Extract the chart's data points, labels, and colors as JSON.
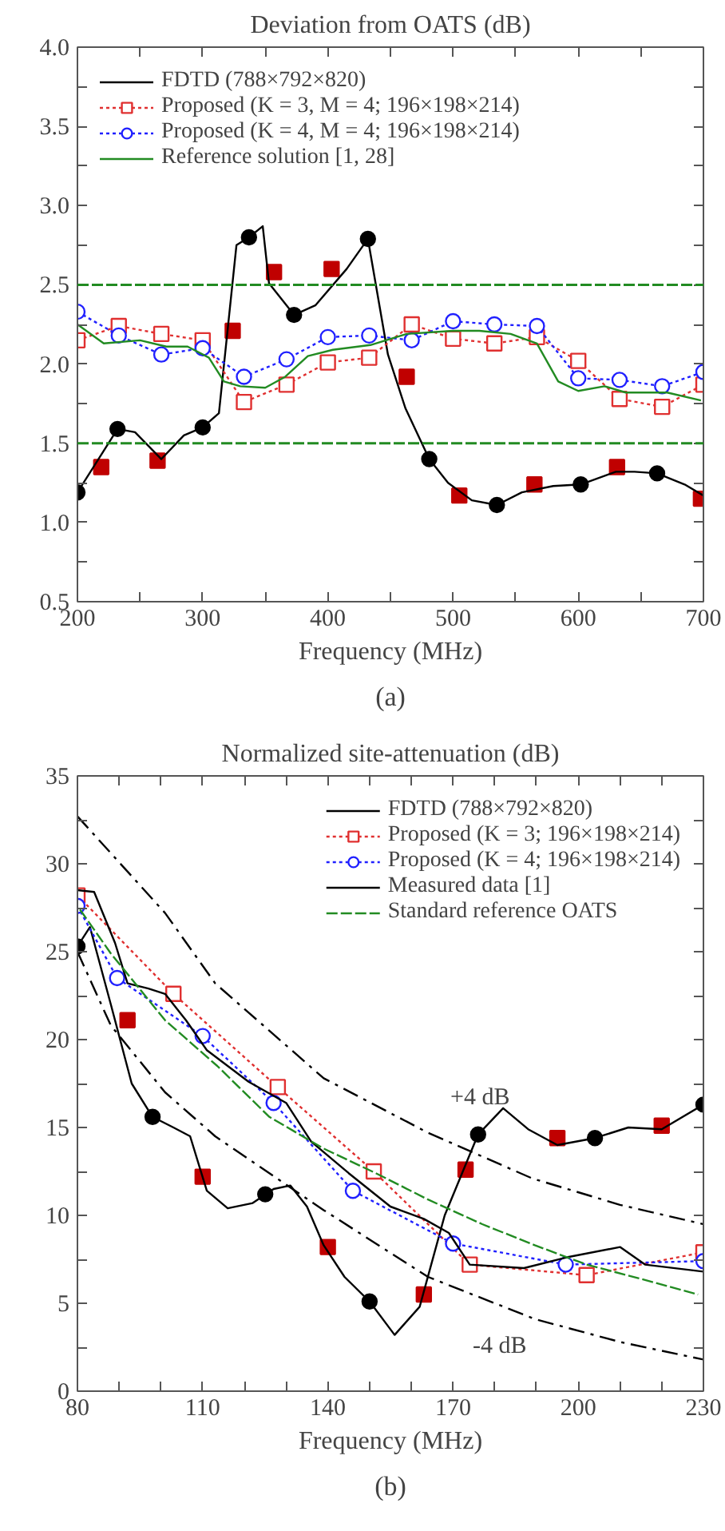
{
  "chart_data": [
    {
      "type": "line",
      "title": "Deviation from OATS (dB)",
      "xlabel": "Frequency (MHz)",
      "annotations": [
        "(a)"
      ],
      "xlim": [
        200,
        700
      ],
      "ylim": [
        0.5,
        4.0
      ],
      "xticks": [
        200,
        {
          "value": 250,
          "label": null
        },
        300,
        {
          "value": 350,
          "label": null
        },
        400,
        {
          "value": 450,
          "label": null
        },
        500,
        {
          "value": 550,
          "label": null
        },
        600,
        {
          "value": 650,
          "label": null
        },
        700
      ],
      "yticks": [
        0.5,
        {
          "value": 0.75,
          "label": null
        },
        {
          "value": 1,
          "label": "1.0"
        },
        {
          "value": 1.25,
          "label": null
        },
        1.5,
        {
          "value": 1.75,
          "label": null
        },
        {
          "value": 2,
          "label": "2.0"
        },
        {
          "value": 2.25,
          "label": null
        },
        2.5,
        {
          "value": 2.75,
          "label": null
        },
        {
          "value": 3,
          "label": "3.0"
        },
        {
          "value": 3.25,
          "label": null
        },
        3.5,
        {
          "value": 3.75,
          "label": null
        },
        {
          "value": 4,
          "label": "4.0"
        }
      ],
      "legend": "top left",
      "grid": false,
      "ref_lines": [
        {
          "axis": "y",
          "value": 2.5,
          "color": "#228b22",
          "line_style": "dashed"
        },
        {
          "axis": "y",
          "value": 1.5,
          "color": "#228b22",
          "line_style": "dashed"
        }
      ],
      "series": [
        {
          "type": "scatter",
          "color": "#c00000",
          "marker": "square",
          "x": [
            219,
            264,
            324,
            357,
            403,
            463,
            505,
            565,
            631,
            698
          ],
          "values": [
            1.35,
            1.39,
            2.21,
            2.58,
            2.6,
            1.92,
            1.17,
            1.24,
            1.35,
            1.15
          ]
        },
        {
          "name": "FDTD (788×792×820)",
          "color": "#000000",
          "marker": "none",
          "line_style": "solid",
          "x": [
            200,
            232,
            246,
            267,
            285,
            300,
            313,
            327,
            337,
            348,
            353,
            373,
            390,
            415,
            432,
            448,
            462,
            481,
            496,
            515,
            535,
            555,
            580,
            602,
            630,
            645,
            663,
            685,
            700
          ],
          "values": [
            1.19,
            1.59,
            1.57,
            1.4,
            1.55,
            1.6,
            1.69,
            2.75,
            2.8,
            2.87,
            2.51,
            2.31,
            2.37,
            2.6,
            2.79,
            2.06,
            1.72,
            1.4,
            1.25,
            1.14,
            1.11,
            1.19,
            1.23,
            1.24,
            1.32,
            1.32,
            1.31,
            1.24,
            1.17
          ]
        },
        {
          "type": "scatter",
          "color": "#000000",
          "marker": "circle",
          "x": [
            200,
            232,
            300,
            337,
            373,
            432,
            481,
            535,
            602,
            663
          ],
          "values": [
            1.19,
            1.59,
            1.6,
            2.8,
            2.31,
            2.79,
            1.4,
            1.11,
            1.24,
            1.31
          ]
        },
        {
          "name": "Proposed (K = 3, M = 4; 196×198×214)",
          "color": "#e03030",
          "marker": "square",
          "line_style": "dotted",
          "x": [
            200,
            233,
            267,
            300,
            333,
            367,
            400,
            433,
            467,
            500,
            533,
            567,
            600,
            633,
            667,
            700
          ],
          "values": [
            2.15,
            2.24,
            2.19,
            2.15,
            1.76,
            1.87,
            2.01,
            2.04,
            2.25,
            2.16,
            2.13,
            2.17,
            2.02,
            1.78,
            1.73,
            1.87
          ]
        },
        {
          "name": "Proposed (K = 4, M = 4; 196×198×214)",
          "color": "#2020ff",
          "marker": "circle",
          "line_style": "dotted",
          "x": [
            200,
            233,
            267,
            300,
            333,
            367,
            400,
            433,
            467,
            500,
            533,
            567,
            600,
            633,
            667,
            700
          ],
          "values": [
            2.33,
            2.18,
            2.06,
            2.1,
            1.92,
            2.03,
            2.17,
            2.18,
            2.15,
            2.27,
            2.25,
            2.24,
            1.91,
            1.9,
            1.86,
            1.95
          ]
        },
        {
          "name": "Reference solution [1, 28]",
          "color": "#228b22",
          "marker": "none",
          "line_style": "solid",
          "x": [
            200,
            221,
            250,
            271,
            288,
            305,
            317,
            330,
            350,
            366,
            384,
            404,
            434,
            463,
            500,
            521,
            546,
            567,
            584,
            600,
            621,
            638,
            671,
            698
          ],
          "values": [
            2.25,
            2.13,
            2.15,
            2.11,
            2.11,
            2.04,
            1.89,
            1.86,
            1.85,
            1.92,
            2.05,
            2.09,
            2.12,
            2.19,
            2.21,
            2.21,
            2.19,
            2.13,
            1.89,
            1.83,
            1.86,
            1.82,
            1.82,
            1.77
          ]
        }
      ]
    },
    {
      "type": "line",
      "title": "Normalized site-attenuation (dB)",
      "xlabel": "Frequency (MHz)",
      "annotations": [
        {
          "text": "+4 dB",
          "x": 164,
          "y": 14.7
        },
        {
          "text": "-4 dB",
          "x": 193,
          "y": 3.8
        },
        "(b)"
      ],
      "xlim": [
        80,
        230
      ],
      "ylim": [
        0,
        35
      ],
      "xticks": [
        80,
        {
          "value": 90,
          "label": null
        },
        {
          "value": 100,
          "label": null
        },
        110,
        {
          "value": 120,
          "label": null
        },
        {
          "value": 130,
          "label": null
        },
        140,
        {
          "value": 150,
          "label": null
        },
        {
          "value": 160,
          "label": null
        },
        170,
        {
          "value": 180,
          "label": null
        },
        {
          "value": 190,
          "label": null
        },
        200,
        {
          "value": 210,
          "label": null
        },
        {
          "value": 220,
          "label": null
        },
        230
      ],
      "yticks": [
        0,
        {
          "value": 2.5,
          "label": null
        },
        5,
        {
          "value": 7.5,
          "label": null
        },
        10,
        {
          "value": 12.5,
          "label": null
        },
        15,
        {
          "value": 17.5,
          "label": null
        },
        20,
        {
          "value": 22.5,
          "label": null
        },
        25,
        {
          "value": 27.5,
          "label": null
        },
        30,
        {
          "value": 32.5,
          "label": null
        },
        35
      ],
      "legend": "top right",
      "grid": false,
      "series": [
        {
          "type": "scatter",
          "color": "#c00000",
          "marker": "square",
          "x": [
            92,
            110,
            140,
            163,
            173,
            195,
            220
          ],
          "values": [
            21.1,
            12.2,
            8.2,
            5.5,
            12.6,
            14.4,
            15.1
          ]
        },
        {
          "name": "FDTD (788×792×820)",
          "color": "#000000",
          "marker": "none",
          "line_style": "solid",
          "x": [
            80,
            83,
            88,
            93,
            98,
            103,
            107,
            111,
            116,
            122,
            127,
            131,
            135,
            139,
            144,
            150,
            156,
            162,
            168,
            176,
            182,
            188,
            195,
            204,
            212,
            220,
            230
          ],
          "values": [
            25.3,
            26.4,
            22,
            17.5,
            15.6,
            15,
            14.5,
            11.4,
            10.4,
            10.7,
            11.5,
            11.7,
            10.5,
            8.3,
            6.5,
            5.1,
            3.2,
            4.8,
            10,
            14.6,
            16.1,
            14.9,
            14,
            14.4,
            15,
            14.9,
            16.3
          ]
        },
        {
          "type": "scatter",
          "color": "#000000",
          "marker": "circle",
          "x": [
            80,
            98,
            125,
            150,
            176,
            204,
            230
          ],
          "values": [
            25.3,
            15.6,
            11.2,
            5.1,
            14.6,
            14.4,
            16.3
          ]
        },
        {
          "name": "Proposed (K = 3; 196×198×214)",
          "color": "#e03030",
          "marker": "square",
          "line_style": "dotted",
          "x": [
            80,
            103,
            128,
            151,
            174,
            202,
            230
          ],
          "values": [
            28.2,
            22.6,
            17.3,
            12.5,
            7.2,
            6.6,
            7.9
          ]
        },
        {
          "name": "Proposed (K = 4; 196×198×214)",
          "color": "#2020ff",
          "marker": "circle",
          "line_style": "dotted",
          "x": [
            80,
            89.5,
            110,
            127,
            146,
            170,
            197,
            230
          ],
          "values": [
            27.6,
            23.5,
            20.2,
            16.4,
            11.4,
            8.4,
            7.2,
            7.4
          ]
        },
        {
          "name": "Measured data [1]",
          "color": "#000000",
          "marker": "none",
          "line_style": "solid",
          "x": [
            80,
            84,
            89,
            92,
            97,
            101,
            106,
            111,
            121,
            130,
            136,
            145,
            155,
            163,
            169,
            174,
            187,
            197,
            210,
            216,
            230
          ],
          "values": [
            28.5,
            28.4,
            25.5,
            23.2,
            22.9,
            22.6,
            21.1,
            19.4,
            17.6,
            16.4,
            14.2,
            12.4,
            10.5,
            9.8,
            9,
            7.2,
            7,
            7.6,
            8.2,
            7.2,
            6.8
          ]
        },
        {
          "name": "Standard reference OATS",
          "color": "#228b22",
          "marker": "none",
          "line_style": "dashed",
          "x": [
            80.6,
            88,
            101,
            113.5,
            126,
            139,
            151.5,
            164,
            177,
            189.6,
            202,
            214.8,
            228.7
          ],
          "values": [
            27.4,
            24.9,
            21.1,
            18.5,
            15.6,
            13.8,
            12.4,
            10.9,
            9.5,
            8.3,
            7.2,
            6.4,
            5.5
          ]
        },
        {
          "color": "#000000",
          "marker": "none",
          "line_style": "dashdot",
          "x": [
            80,
            101,
            113,
            139,
            164,
            189,
            210,
            230
          ],
          "values": [
            32.7,
            27.2,
            23.2,
            17.8,
            14.7,
            12.1,
            10.6,
            9.5
          ]
        },
        {
          "color": "#000000",
          "marker": "none",
          "line_style": "dashdot",
          "x": [
            80,
            88,
            101,
            113,
            139,
            164,
            189.6,
            210,
            230
          ],
          "values": [
            25,
            20.8,
            17,
            14.5,
            10.3,
            6.5,
            4.1,
            2.8,
            1.8
          ]
        }
      ]
    }
  ]
}
